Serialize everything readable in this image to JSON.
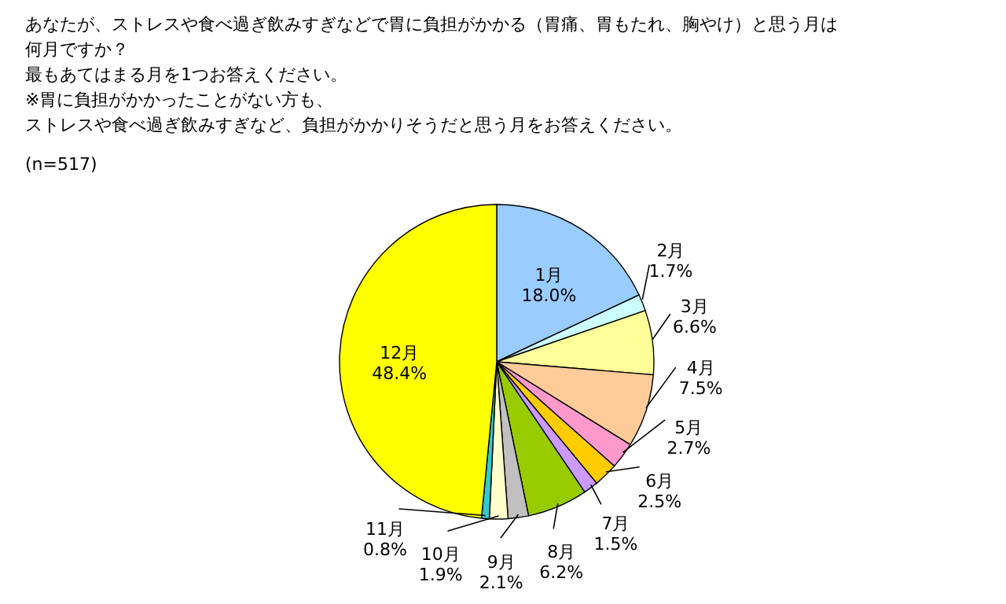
{
  "chart_data": {
    "type": "pie",
    "title": "あなたが、ストレスや食べ過ぎ飲みすぎなどで胃に負担がかかる（胃痛、胃もたれ、胸やけ）と思う月は何月ですか？",
    "annotations": [
      "最もあてはまる月を1つお答えください。",
      "※胃に負担がかかったことがない方も、",
      "ストレスや食べ過ぎ飲みすぎなど、負担がかかりそうだと思う月をお答えください。"
    ],
    "subtitle": "(n=517)",
    "categories": [
      "1月",
      "2月",
      "3月",
      "4月",
      "5月",
      "6月",
      "7月",
      "8月",
      "9月",
      "10月",
      "11月",
      "12月"
    ],
    "values": [
      18.0,
      1.7,
      6.6,
      7.5,
      2.7,
      2.5,
      1.5,
      6.2,
      2.1,
      1.9,
      0.8,
      48.4
    ],
    "value_labels": [
      "18.0%",
      "1.7%",
      "6.6%",
      "7.5%",
      "2.7%",
      "2.5%",
      "1.5%",
      "6.2%",
      "2.1%",
      "1.9%",
      "0.8%",
      "48.4%"
    ],
    "colors": [
      "#99ccff",
      "#ccffff",
      "#ffff99",
      "#ffcc99",
      "#ff99cc",
      "#ffcc00",
      "#cc99ff",
      "#99cc00",
      "#c0c0c0",
      "#ffffcc",
      "#33cccc",
      "#ffff00"
    ],
    "legend": false
  }
}
